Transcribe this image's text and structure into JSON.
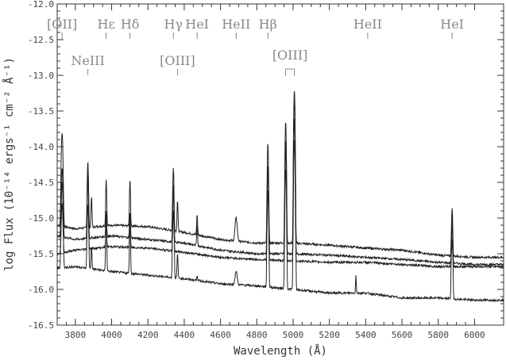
{
  "chart_data": {
    "type": "line",
    "xlabel": "Wavelength (Å)",
    "ylabel": "log Flux (10⁻¹⁴ ergs⁻¹ cm⁻² Å⁻¹)",
    "xlim": [
      3700,
      6160
    ],
    "ylim": [
      -16.5,
      -12.0
    ],
    "x_ticks": [
      3800,
      4000,
      4200,
      4400,
      4600,
      4800,
      5000,
      5200,
      5400,
      5600,
      5800,
      6000
    ],
    "x_tick_labels": [
      "3800",
      "4000",
      "4200",
      "4400",
      "4600",
      "4800",
      "5000",
      "5200",
      "5400",
      "5600",
      "5800",
      "6000"
    ],
    "y_ticks": [
      -16.5,
      -16.0,
      -15.5,
      -15.0,
      -14.5,
      -14.0,
      -13.5,
      -13.0,
      -12.5,
      -12.0
    ],
    "y_tick_labels": [
      "-16.5",
      "-16.0",
      "-15.5",
      "-15.0",
      "-14.5",
      "-14.0",
      "-13.5",
      "-13.0",
      "-12.5",
      "-12.0"
    ],
    "grid": false,
    "lines": [
      {
        "label": "[OII]",
        "wavelength": 3727,
        "row": 1
      },
      {
        "label": "NeIII",
        "wavelength": 3869,
        "row": 2
      },
      {
        "label": "Hε",
        "wavelength": 3970,
        "row": 1
      },
      {
        "label": "Hδ",
        "wavelength": 4101,
        "row": 1
      },
      {
        "label": "Hγ",
        "wavelength": 4340,
        "row": 1
      },
      {
        "label": "[OIII]",
        "wavelength": 4363,
        "row": 2
      },
      {
        "label": "HeI",
        "wavelength": 4471,
        "row": 1
      },
      {
        "label": "HeII",
        "wavelength": 4686,
        "row": 1
      },
      {
        "label": "Hβ",
        "wavelength": 4861,
        "row": 1
      },
      {
        "label": "[OIII]",
        "wavelength": 4983,
        "row": 3,
        "bracket": [
          4959,
          5007
        ]
      },
      {
        "label": "HeII",
        "wavelength": 5411,
        "row": 1
      },
      {
        "label": "HeI",
        "wavelength": 5876,
        "row": 1
      }
    ],
    "series": [
      {
        "continuum": [
          [
            3700,
            -15.1
          ],
          [
            3800,
            -15.15
          ],
          [
            4000,
            -15.1
          ],
          [
            4200,
            -15.12
          ],
          [
            4400,
            -15.2
          ],
          [
            4600,
            -15.3
          ],
          [
            4800,
            -15.35
          ],
          [
            5000,
            -15.35
          ],
          [
            5200,
            -15.38
          ],
          [
            5400,
            -15.42
          ],
          [
            5600,
            -15.45
          ],
          [
            5800,
            -15.52
          ],
          [
            6000,
            -15.55
          ],
          [
            6160,
            -15.55
          ]
        ],
        "emission": [
          {
            "w": 3727,
            "peak": -13.8,
            "width": 8
          },
          {
            "w": 3869,
            "peak": -14.2,
            "width": 6
          },
          {
            "w": 3889,
            "peak": -14.7,
            "width": 5
          },
          {
            "w": 3970,
            "peak": -14.45,
            "width": 5
          },
          {
            "w": 4101,
            "peak": -14.45,
            "width": 5
          },
          {
            "w": 4340,
            "peak": -14.3,
            "width": 6
          },
          {
            "w": 4363,
            "peak": -14.75,
            "width": 5
          },
          {
            "w": 4471,
            "peak": -14.95,
            "width": 5
          },
          {
            "w": 4686,
            "peak": -15.0,
            "width": 12
          },
          {
            "w": 4861,
            "peak": -13.95,
            "width": 6
          },
          {
            "w": 4959,
            "peak": -13.65,
            "width": 6
          },
          {
            "w": 5007,
            "peak": -13.2,
            "width": 6
          },
          {
            "w": 5876,
            "peak": -14.85,
            "width": 6
          }
        ]
      },
      {
        "continuum": [
          [
            3700,
            -15.25
          ],
          [
            3800,
            -15.3
          ],
          [
            4000,
            -15.25
          ],
          [
            4200,
            -15.3
          ],
          [
            4400,
            -15.35
          ],
          [
            4600,
            -15.45
          ],
          [
            4800,
            -15.5
          ],
          [
            5000,
            -15.5
          ],
          [
            5200,
            -15.52
          ],
          [
            5400,
            -15.55
          ],
          [
            5600,
            -15.58
          ],
          [
            5800,
            -15.62
          ],
          [
            6000,
            -15.65
          ],
          [
            6160,
            -15.65
          ]
        ],
        "emission": [
          {
            "w": 3727,
            "peak": -14.3,
            "width": 8
          },
          {
            "w": 3869,
            "peak": -14.35,
            "width": 6
          },
          {
            "w": 3970,
            "peak": -14.9,
            "width": 5
          },
          {
            "w": 4101,
            "peak": -14.9,
            "width": 5
          },
          {
            "w": 4340,
            "peak": -14.55,
            "width": 6
          },
          {
            "w": 4471,
            "peak": -15.1,
            "width": 5
          },
          {
            "w": 4861,
            "peak": -14.25,
            "width": 6
          },
          {
            "w": 4959,
            "peak": -14.0,
            "width": 6
          },
          {
            "w": 5007,
            "peak": -13.6,
            "width": 6
          },
          {
            "w": 5876,
            "peak": -15.1,
            "width": 6
          }
        ]
      },
      {
        "continuum": [
          [
            3700,
            -15.7
          ],
          [
            3800,
            -15.68
          ],
          [
            4000,
            -15.75
          ],
          [
            4200,
            -15.8
          ],
          [
            4400,
            -15.85
          ],
          [
            4600,
            -15.92
          ],
          [
            4800,
            -15.95
          ],
          [
            5000,
            -16.0
          ],
          [
            5200,
            -16.05
          ],
          [
            5400,
            -16.05
          ],
          [
            5600,
            -16.12
          ],
          [
            5800,
            -16.12
          ],
          [
            6000,
            -16.15
          ],
          [
            6160,
            -16.15
          ]
        ],
        "emission": [
          {
            "w": 3727,
            "peak": -14.5,
            "width": 8
          },
          {
            "w": 3869,
            "peak": -14.4,
            "width": 6
          },
          {
            "w": 3889,
            "peak": -15.4,
            "width": 5
          },
          {
            "w": 3970,
            "peak": -14.95,
            "width": 5
          },
          {
            "w": 4101,
            "peak": -15.0,
            "width": 5
          },
          {
            "w": 4340,
            "peak": -14.55,
            "width": 6
          },
          {
            "w": 4363,
            "peak": -15.5,
            "width": 5
          },
          {
            "w": 4471,
            "peak": -15.8,
            "width": 5
          },
          {
            "w": 4686,
            "peak": -15.75,
            "width": 12
          },
          {
            "w": 4861,
            "peak": -14.3,
            "width": 6
          },
          {
            "w": 4959,
            "peak": -13.9,
            "width": 6
          },
          {
            "w": 5007,
            "peak": -13.3,
            "width": 6
          },
          {
            "w": 5346,
            "peak": -15.8,
            "width": 4
          },
          {
            "w": 5876,
            "peak": -14.9,
            "width": 6
          }
        ]
      },
      {
        "continuum": [
          [
            3700,
            -15.5
          ],
          [
            3800,
            -15.45
          ],
          [
            4000,
            -15.4
          ],
          [
            4200,
            -15.42
          ],
          [
            4400,
            -15.48
          ],
          [
            4600,
            -15.55
          ],
          [
            4800,
            -15.58
          ],
          [
            5000,
            -15.6
          ],
          [
            5200,
            -15.62
          ],
          [
            5400,
            -15.62
          ],
          [
            5600,
            -15.65
          ],
          [
            5800,
            -15.68
          ],
          [
            6000,
            -15.68
          ],
          [
            6160,
            -15.68
          ]
        ],
        "emission": [
          {
            "w": 3727,
            "peak": -14.8,
            "width": 8
          },
          {
            "w": 3869,
            "peak": -14.8,
            "width": 6
          },
          {
            "w": 3970,
            "peak": -15.05,
            "width": 5
          },
          {
            "w": 4101,
            "peak": -15.1,
            "width": 5
          },
          {
            "w": 4340,
            "peak": -14.9,
            "width": 6
          },
          {
            "w": 4861,
            "peak": -14.6,
            "width": 6
          },
          {
            "w": 4959,
            "peak": -14.3,
            "width": 6
          },
          {
            "w": 5007,
            "peak": -13.9,
            "width": 6
          },
          {
            "w": 5876,
            "peak": -15.3,
            "width": 6
          }
        ]
      }
    ]
  }
}
